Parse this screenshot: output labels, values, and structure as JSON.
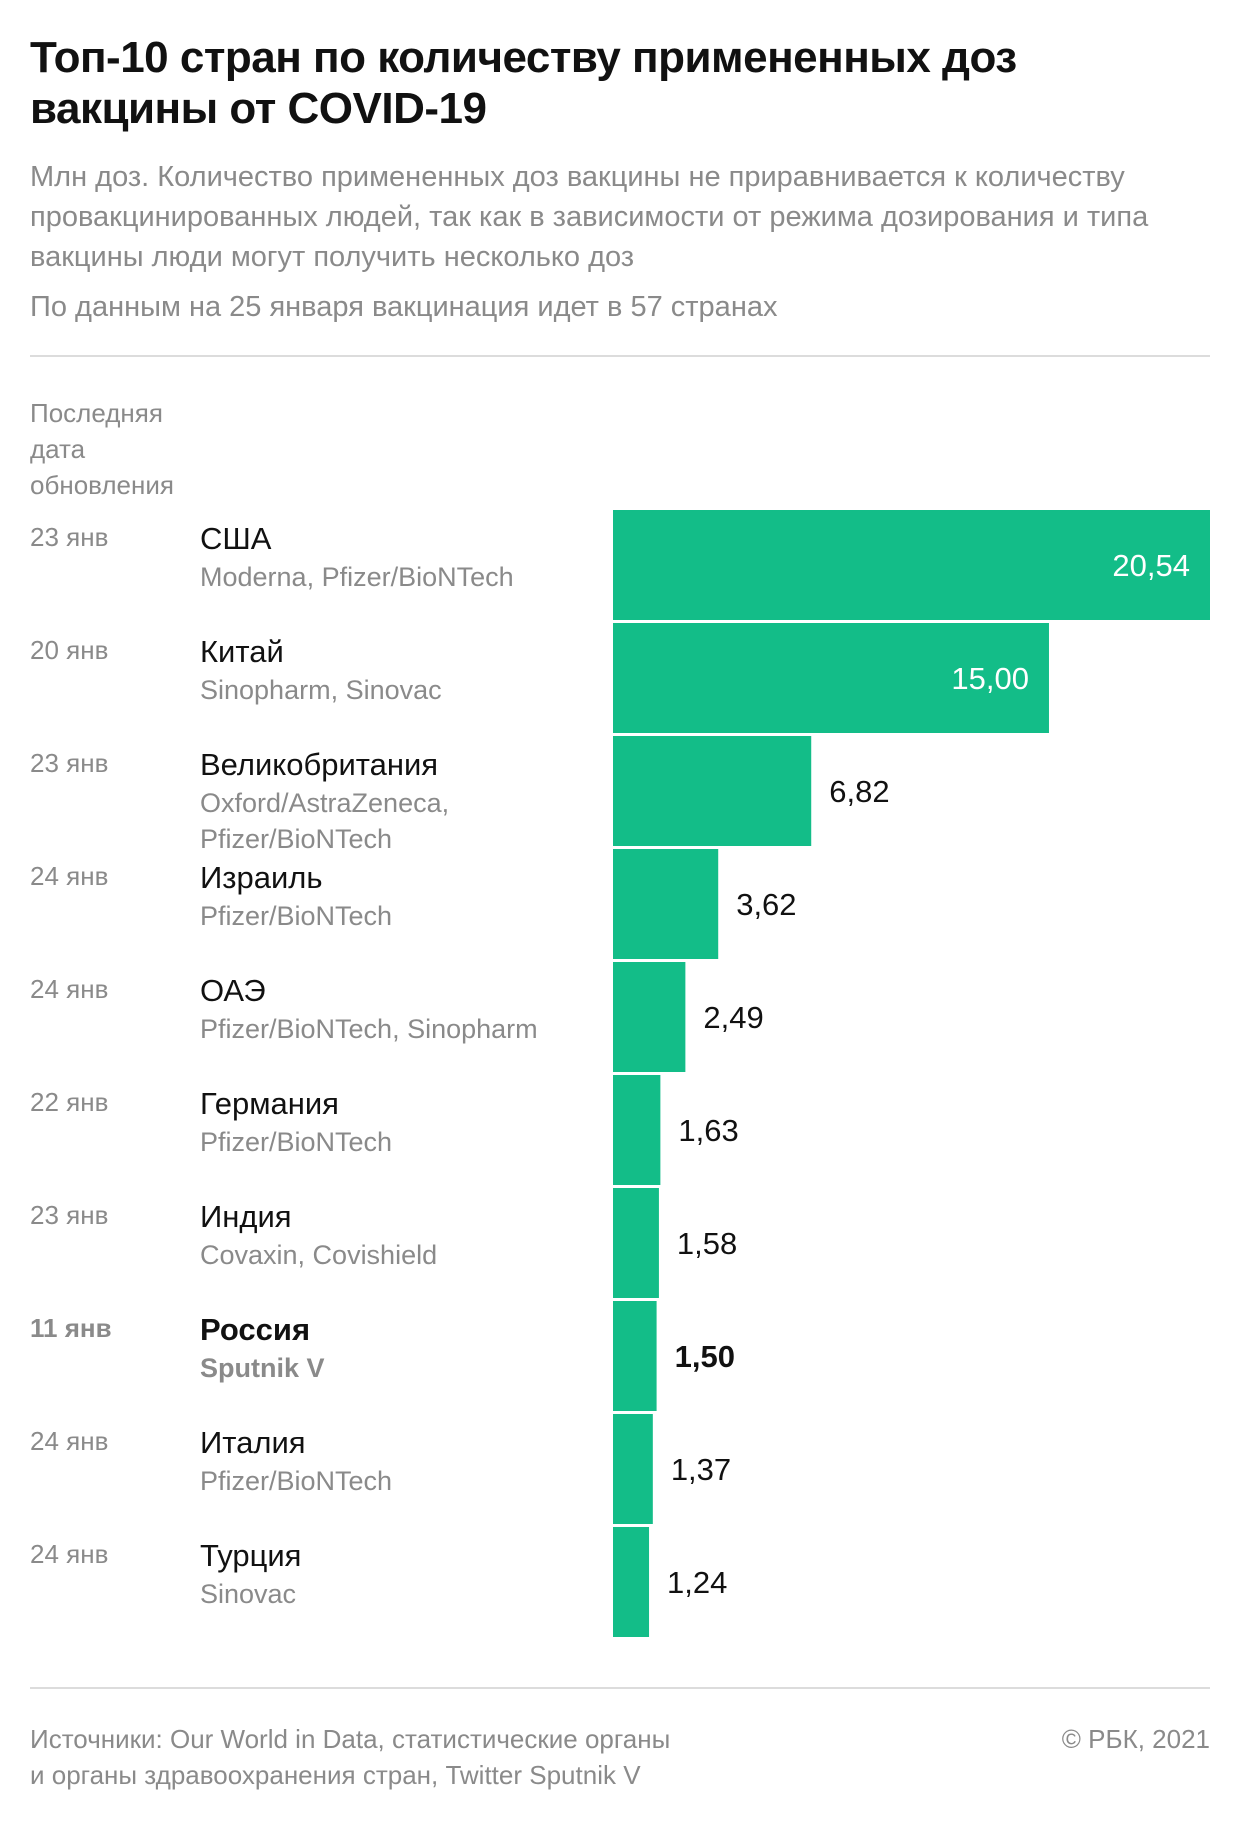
{
  "title": "Топ-10 стран по количеству примененных доз вакцины от COVID-19",
  "subtitle": "Млн доз. Количество примененных доз вакцины не приравнивается к количеству провакцинированных людей, так как в зависимости от режима дозирования и типа вакцины люди могут получить несколько доз",
  "note": "По данным на 25 января вакцинация идет в 57 странах",
  "column_header": "Последняя\nдата\nобновления",
  "footer": {
    "sources": "Источники: Our World in Data, статистические органы\nи органы здравоохранения стран, Twitter Sputnik V",
    "copyright": "© РБК, 2021"
  },
  "colors": {
    "bar": "#13bd88",
    "text": "#111111",
    "muted": "#8a8a8a",
    "inside_label": "#ffffff"
  },
  "chart_data": {
    "type": "bar",
    "orientation": "horizontal",
    "unit": "Млн доз",
    "categories": [
      "США",
      "Китай",
      "Великобритания",
      "Израиль",
      "ОАЭ",
      "Германия",
      "Индия",
      "Россия",
      "Италия",
      "Турция"
    ],
    "values": [
      20.54,
      15.0,
      6.82,
      3.62,
      2.49,
      1.63,
      1.58,
      1.5,
      1.37,
      1.24
    ],
    "value_labels": [
      "20,54",
      "15,00",
      "6,82",
      "3,62",
      "2,49",
      "1,63",
      "1,58",
      "1,50",
      "1,37",
      "1,24"
    ],
    "dates": [
      "23 янв",
      "20 янв",
      "23 янв",
      "24 янв",
      "24 янв",
      "22 янв",
      "23 янв",
      "11 янв",
      "24 янв",
      "24 янв"
    ],
    "vaccines": [
      "Moderna, Pfizer/BioNTech",
      "Sinopharm, Sinovac",
      "Oxford/AstraZeneca,\nPfizer/BioNTech",
      "Pfizer/BioNTech",
      "Pfizer/BioNTech, Sinopharm",
      "Pfizer/BioNTech",
      "Covaxin, Covishield",
      "Sputnik V",
      "Pfizer/BioNTech",
      "Sinovac"
    ],
    "highlighted": [
      "Россия"
    ],
    "xlim": [
      0,
      20.54
    ],
    "grid": false,
    "legend": "none"
  }
}
